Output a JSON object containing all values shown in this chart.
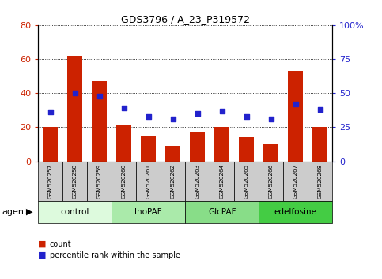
{
  "title": "GDS3796 / A_23_P319572",
  "samples": [
    "GSM520257",
    "GSM520258",
    "GSM520259",
    "GSM520260",
    "GSM520261",
    "GSM520262",
    "GSM520263",
    "GSM520264",
    "GSM520265",
    "GSM520266",
    "GSM520267",
    "GSM520268"
  ],
  "bar_values": [
    20,
    62,
    47,
    21,
    15,
    9,
    17,
    20,
    14,
    10,
    53,
    20
  ],
  "percentile_values": [
    36,
    50,
    48,
    39,
    33,
    31,
    35,
    37,
    33,
    31,
    42,
    38
  ],
  "groups": [
    {
      "label": "control",
      "start": 0,
      "end": 3,
      "color": "#ddfadd"
    },
    {
      "label": "InoPAF",
      "start": 3,
      "end": 6,
      "color": "#aaeaaa"
    },
    {
      "label": "GlcPAF",
      "start": 6,
      "end": 9,
      "color": "#88dd88"
    },
    {
      "label": "edelfosine",
      "start": 9,
      "end": 12,
      "color": "#44cc44"
    }
  ],
  "bar_color": "#cc2200",
  "scatter_color": "#2222cc",
  "left_ylim": [
    0,
    80
  ],
  "right_ylim": [
    0,
    100
  ],
  "left_yticks": [
    0,
    20,
    40,
    60,
    80
  ],
  "right_yticks": [
    0,
    25,
    50,
    75,
    100
  ],
  "right_yticklabels": [
    "0",
    "25",
    "50",
    "75",
    "100%"
  ],
  "left_ycolor": "#cc2200",
  "right_ycolor": "#2222cc",
  "background_color": "#ffffff",
  "sample_box_color": "#cccccc",
  "legend_count_label": "count",
  "legend_pct_label": "percentile rank within the sample",
  "agent_label": "agent"
}
